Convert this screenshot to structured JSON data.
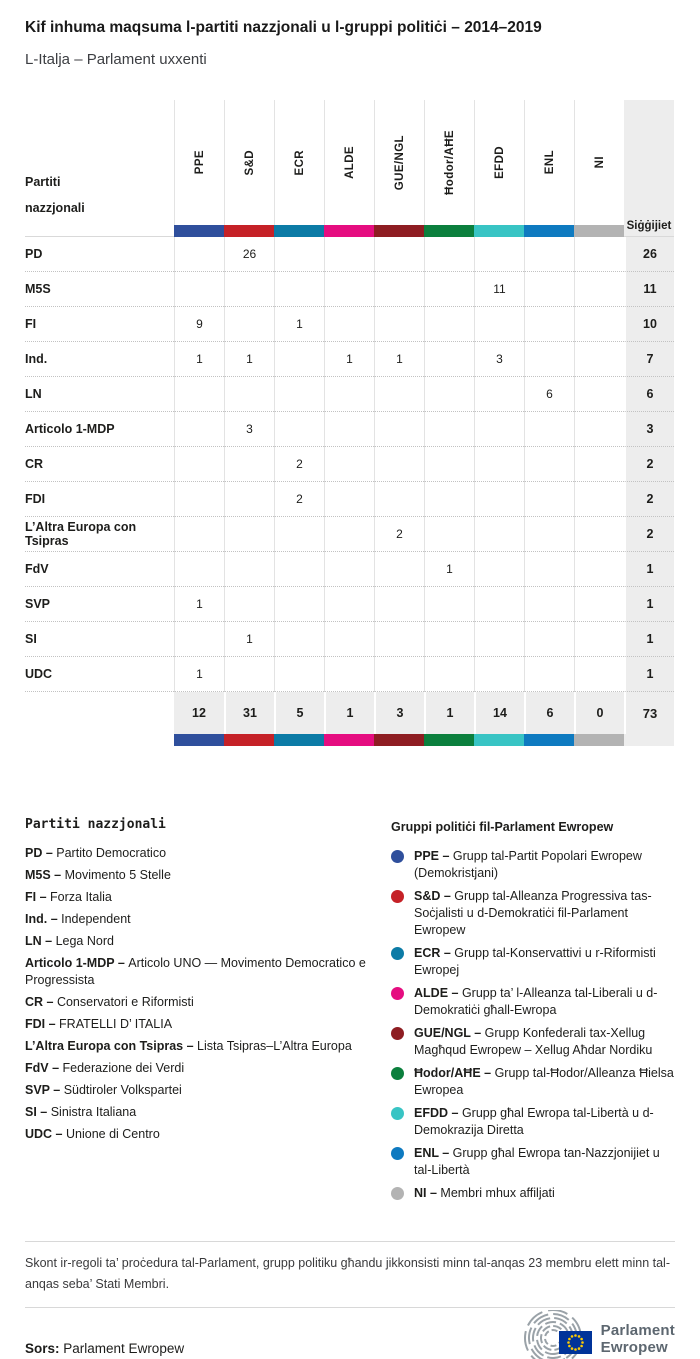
{
  "chart_data": {
    "type": "table",
    "title": "Kif inhuma maqsuma l-partiti nazzjonali u l-gruppi politiċi – 2014–2019",
    "subtitle": "L-Italja – Parlament uxxenti",
    "row_axis_label": "Partiti nazzjonali",
    "seats_column_label": "Siġġijiet",
    "columns": [
      "PPE",
      "S&D",
      "ECR",
      "ALDE",
      "GUE/NGL",
      "Ħodor/AĦE",
      "EFDD",
      "ENL",
      "NI"
    ],
    "column_colors": [
      "#2f4f9c",
      "#c52127",
      "#0c7ba6",
      "#e50d80",
      "#8e1d22",
      "#0b7f3d",
      "#38c4c4",
      "#0e7ac0",
      "#b3b3b3"
    ],
    "rows": [
      {
        "party": "PD",
        "seats_by_group": {
          "S&D": 26
        },
        "total": 26
      },
      {
        "party": "M5S",
        "seats_by_group": {
          "EFDD": 11
        },
        "total": 11
      },
      {
        "party": "FI",
        "seats_by_group": {
          "PPE": 9,
          "ECR": 1
        },
        "total": 10
      },
      {
        "party": "Ind.",
        "seats_by_group": {
          "PPE": 1,
          "S&D": 1,
          "ALDE": 1,
          "GUE/NGL": 1,
          "EFDD": 3
        },
        "total": 7
      },
      {
        "party": "LN",
        "seats_by_group": {
          "ENL": 6
        },
        "total": 6
      },
      {
        "party": "Articolo 1-MDP",
        "seats_by_group": {
          "S&D": 3
        },
        "total": 3
      },
      {
        "party": "CR",
        "seats_by_group": {
          "ECR": 2
        },
        "total": 2
      },
      {
        "party": "FDI",
        "seats_by_group": {
          "ECR": 2
        },
        "total": 2
      },
      {
        "party": "L’Altra Europa con Tsipras",
        "seats_by_group": {
          "GUE/NGL": 2
        },
        "total": 2
      },
      {
        "party": "FdV",
        "seats_by_group": {
          "Ħodor/AĦE": 1
        },
        "total": 1
      },
      {
        "party": "SVP",
        "seats_by_group": {
          "PPE": 1
        },
        "total": 1
      },
      {
        "party": "SI",
        "seats_by_group": {
          "S&D": 1
        },
        "total": 1
      },
      {
        "party": "UDC",
        "seats_by_group": {
          "PPE": 1
        },
        "total": 1
      }
    ],
    "column_totals": [
      12,
      31,
      5,
      1,
      3,
      1,
      14,
      6,
      0
    ],
    "total_seats": 73
  },
  "legend_parties": {
    "heading": "Partiti nazzjonali",
    "separator": "–",
    "items": [
      {
        "abbr": "PD",
        "name": "Partito Democratico"
      },
      {
        "abbr": "M5S",
        "name": "Movimento 5 Stelle"
      },
      {
        "abbr": "FI",
        "name": "Forza Italia"
      },
      {
        "abbr": "Ind.",
        "name": "Independent"
      },
      {
        "abbr": "LN",
        "name": "Lega Nord"
      },
      {
        "abbr": "Articolo 1-MDP",
        "name": "Articolo UNO — Movimento Democratico e Progressista"
      },
      {
        "abbr": "CR",
        "name": "Conservatori e Riformisti"
      },
      {
        "abbr": "FDI",
        "name": "FRATELLI D’ ITALIA"
      },
      {
        "abbr": "L’Altra Europa con Tsipras",
        "name": "Lista Tsipras–L’Altra Europa"
      },
      {
        "abbr": "FdV",
        "name": "Federazione dei Verdi"
      },
      {
        "abbr": "SVP",
        "name": "Südtiroler Volkspartei"
      },
      {
        "abbr": "SI",
        "name": "Sinistra Italiana"
      },
      {
        "abbr": "UDC",
        "name": "Unione di Centro"
      }
    ]
  },
  "legend_groups": {
    "heading": "Gruppi politiċi fil-Parlament Ewropew",
    "separator": "–",
    "items": [
      {
        "abbr": "PPE",
        "color": "#2f4f9c",
        "desc": "Grupp tal-Partit Popolari Ewropew (Demokristjani)"
      },
      {
        "abbr": "S&D",
        "color": "#c52127",
        "desc": "Grupp tal-Alleanza Progressiva tas-Soċjalisti u d-Demokratiċi fil-Parlament Ewropew"
      },
      {
        "abbr": "ECR",
        "color": "#0c7ba6",
        "desc": "Grupp tal-Konservattivi u r-Riformisti Ewropej"
      },
      {
        "abbr": "ALDE",
        "color": "#e50d80",
        "desc": "Grupp ta’ l-Alleanza tal-Liberali u d-Demokratiċi għall-Ewropa"
      },
      {
        "abbr": "GUE/NGL",
        "color": "#8e1d22",
        "desc": "Grupp Konfederali tax-Xellug Magħqud Ewropew – Xellug Aħdar Nordiku"
      },
      {
        "abbr": "Ħodor/AĦE",
        "color": "#0b7f3d",
        "desc": "Grupp tal-Ħodor/Alleanza Ħielsa Ewropea"
      },
      {
        "abbr": "EFDD",
        "color": "#38c4c4",
        "desc": "Grupp għal Ewropa tal-Libertà u d-Demokrazija Diretta"
      },
      {
        "abbr": "ENL",
        "color": "#0e7ac0",
        "desc": "Grupp għal Ewropa tan-Nazzjonijiet u tal-Libertà"
      },
      {
        "abbr": "NI",
        "color": "#b3b3b3",
        "desc": "Membri mhux affiljati"
      }
    ]
  },
  "footer": {
    "note": "Skont ir-regoli ta’ proċedura tal-Parlament, grupp politiku għandu jikkonsisti minn tal-anqas 23 membru elett minn tal-anqas seba’ Stati Membri.",
    "source_label": "Sors:",
    "source": "Parlament Ewropew",
    "logo_text_line1": "Parlament",
    "logo_text_line2": "Ewropew",
    "logo_colors": {
      "flag_blue": "#003399",
      "star_yellow": "#ffcc00",
      "swirl_gray": "#9aa2a8"
    }
  }
}
